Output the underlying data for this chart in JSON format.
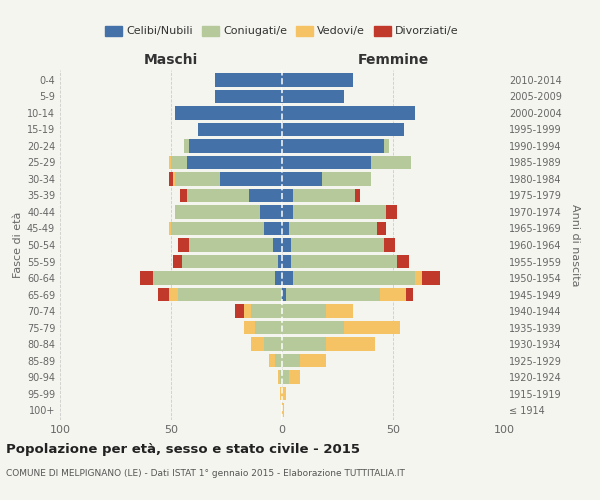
{
  "age_groups": [
    "100+",
    "95-99",
    "90-94",
    "85-89",
    "80-84",
    "75-79",
    "70-74",
    "65-69",
    "60-64",
    "55-59",
    "50-54",
    "45-49",
    "40-44",
    "35-39",
    "30-34",
    "25-29",
    "20-24",
    "15-19",
    "10-14",
    "5-9",
    "0-4"
  ],
  "birth_years": [
    "≤ 1914",
    "1915-1919",
    "1920-1924",
    "1925-1929",
    "1930-1934",
    "1935-1939",
    "1940-1944",
    "1945-1949",
    "1950-1954",
    "1955-1959",
    "1960-1964",
    "1965-1969",
    "1970-1974",
    "1975-1979",
    "1980-1984",
    "1985-1989",
    "1990-1994",
    "1995-1999",
    "2000-2004",
    "2005-2009",
    "2010-2014"
  ],
  "males": {
    "celibe": [
      0,
      0,
      0,
      0,
      0,
      0,
      0,
      0,
      3,
      2,
      4,
      8,
      10,
      15,
      28,
      43,
      42,
      38,
      48,
      30,
      30
    ],
    "coniugato": [
      0,
      0,
      1,
      3,
      8,
      12,
      14,
      47,
      55,
      43,
      38,
      42,
      38,
      28,
      20,
      7,
      2,
      0,
      0,
      0,
      0
    ],
    "vedovo": [
      0,
      1,
      1,
      3,
      6,
      5,
      3,
      4,
      0,
      0,
      0,
      1,
      0,
      0,
      1,
      1,
      0,
      0,
      0,
      0,
      0
    ],
    "divorziato": [
      0,
      0,
      0,
      0,
      0,
      0,
      4,
      5,
      6,
      4,
      5,
      0,
      0,
      3,
      2,
      0,
      0,
      0,
      0,
      0,
      0
    ]
  },
  "females": {
    "nubile": [
      0,
      0,
      0,
      0,
      0,
      0,
      0,
      2,
      5,
      4,
      4,
      3,
      5,
      5,
      18,
      40,
      46,
      55,
      60,
      28,
      32
    ],
    "coniugata": [
      0,
      0,
      3,
      8,
      20,
      28,
      20,
      42,
      55,
      48,
      42,
      40,
      42,
      28,
      22,
      18,
      2,
      0,
      0,
      0,
      0
    ],
    "vedova": [
      1,
      2,
      5,
      12,
      22,
      25,
      12,
      12,
      3,
      0,
      0,
      0,
      0,
      0,
      0,
      0,
      0,
      0,
      0,
      0,
      0
    ],
    "divorziata": [
      0,
      0,
      0,
      0,
      0,
      0,
      0,
      3,
      8,
      5,
      5,
      4,
      5,
      2,
      0,
      0,
      0,
      0,
      0,
      0,
      0
    ]
  },
  "colors": {
    "celibe": "#4472a8",
    "coniugato": "#b5c99a",
    "vedovo": "#f5c264",
    "divorziato": "#c0392b"
  },
  "xlim": 100,
  "xlabel_left": "Maschi",
  "xlabel_right": "Femmine",
  "ylabel_left": "Fasce di età",
  "ylabel_right": "Anni di nascita",
  "title": "Popolazione per età, sesso e stato civile - 2015",
  "subtitle": "COMUNE DI MELPIGNANO (LE) - Dati ISTAT 1° gennaio 2015 - Elaborazione TUTTITALIA.IT",
  "legend_labels": [
    "Celibi/Nubili",
    "Coniugati/e",
    "Vedovi/e",
    "Divorziati/e"
  ],
  "background_color": "#f5f5f0",
  "grid_color": "#cccccc",
  "tick_color": "#666666"
}
